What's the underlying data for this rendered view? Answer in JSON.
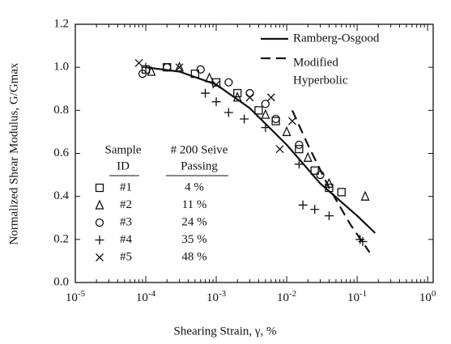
{
  "chart_data": {
    "type": "scatter",
    "x_label": "Shearing Strain, γ, %",
    "y_label": "Normalized Shear Modulus, G/Gmax",
    "log_x": true,
    "xlim": [
      1e-05,
      1.2
    ],
    "ylim": [
      0,
      1.2
    ],
    "xticks": [
      {
        "value": 1e-05,
        "label": "10",
        "exponent": "-5"
      },
      {
        "value": 0.0001,
        "label": "10",
        "exponent": "-4"
      },
      {
        "value": 0.001,
        "label": "10",
        "exponent": "-3"
      },
      {
        "value": 0.01,
        "label": "10",
        "exponent": "-2"
      },
      {
        "value": 0.1,
        "label": "10",
        "exponent": "-1"
      },
      {
        "value": 1,
        "label": "10",
        "exponent": "0"
      }
    ],
    "yticks": [
      {
        "value": 0,
        "label": "0.0"
      },
      0.2,
      0.4,
      0.6,
      0.8,
      {
        "value": 1,
        "label": "1.0"
      },
      1.2
    ],
    "table_headers": {
      "sample": [
        "Sample",
        "ID"
      ],
      "passing": [
        "# 200 Seive",
        "Passing"
      ]
    },
    "series": [
      {
        "name": "#1",
        "passing": 4,
        "passing_label": "4 %",
        "marker": "square",
        "color": "#111",
        "x": [
          0.0001,
          0.0002,
          0.0005,
          0.001,
          0.002,
          0.004,
          0.007,
          0.015,
          0.025,
          0.04,
          0.06
        ],
        "values": [
          0.99,
          1.0,
          0.97,
          0.93,
          0.88,
          0.8,
          0.75,
          0.62,
          0.52,
          0.44,
          0.42
        ]
      },
      {
        "name": "#2",
        "passing": 11,
        "passing_label": "11 %",
        "marker": "triangle",
        "color": "#111",
        "x": [
          0.00012,
          0.0003,
          0.0008,
          0.002,
          0.005,
          0.01,
          0.02,
          0.04,
          0.13
        ],
        "values": [
          0.98,
          1.0,
          0.95,
          0.86,
          0.78,
          0.7,
          0.58,
          0.46,
          0.4
        ]
      },
      {
        "name": "#3",
        "passing": 24,
        "passing_label": "24 %",
        "marker": "circle",
        "color": "#111",
        "x": [
          9e-05,
          0.0002,
          0.0006,
          0.0015,
          0.003,
          0.005,
          0.007,
          0.015,
          0.03
        ],
        "values": [
          0.97,
          1.0,
          0.99,
          0.93,
          0.88,
          0.83,
          0.76,
          0.64,
          0.5
        ]
      },
      {
        "name": "#4",
        "passing": 35,
        "passing_label": "35 %",
        "marker": "plus",
        "color": "#111",
        "x": [
          0.0001,
          0.0007,
          0.001,
          0.0015,
          0.0025,
          0.005,
          0.015,
          0.017,
          0.025,
          0.04,
          0.11,
          0.12
        ],
        "values": [
          1.0,
          0.88,
          0.84,
          0.79,
          0.76,
          0.72,
          0.55,
          0.36,
          0.34,
          0.31,
          0.2,
          0.19
        ]
      },
      {
        "name": "#5",
        "passing": 48,
        "passing_label": "48 %",
        "marker": "x",
        "color": "#111",
        "x": [
          8e-05,
          0.0003,
          0.001,
          0.003,
          0.006,
          0.008,
          0.012
        ],
        "values": [
          1.02,
          1.0,
          0.92,
          0.86,
          0.86,
          0.62,
          0.75
        ]
      }
    ],
    "lines": [
      {
        "name": "Ramberg-Osgood",
        "style": "solid",
        "color": "#111",
        "x": [
          0.0001,
          0.0003,
          0.001,
          0.003,
          0.01,
          0.03,
          0.1,
          0.18
        ],
        "values": [
          1.0,
          0.98,
          0.92,
          0.81,
          0.64,
          0.46,
          0.31,
          0.23
        ]
      },
      {
        "name": [
          "Modified",
          "Hyperbolic"
        ],
        "style": "dashed",
        "color": "#111",
        "x": [
          0.012,
          0.02,
          0.04,
          0.08,
          0.15
        ],
        "values": [
          0.8,
          0.64,
          0.44,
          0.27,
          0.14
        ]
      }
    ]
  }
}
